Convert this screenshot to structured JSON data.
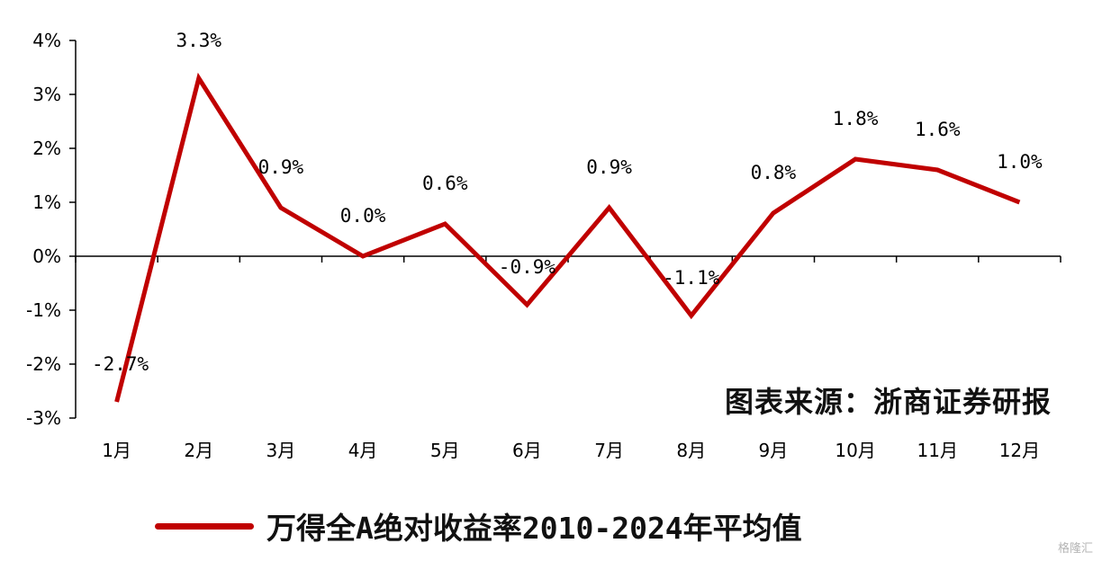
{
  "chart_data": {
    "type": "line",
    "categories": [
      "1月",
      "2月",
      "3月",
      "4月",
      "5月",
      "6月",
      "7月",
      "8月",
      "9月",
      "10月",
      "11月",
      "12月"
    ],
    "series": [
      {
        "name": "万得全A绝对收益率2010-2024年平均值",
        "values": [
          -2.7,
          3.3,
          0.9,
          0.0,
          0.6,
          -0.9,
          0.9,
          -1.1,
          0.8,
          1.8,
          1.6,
          1.0
        ],
        "labels": [
          "-2.7%",
          "3.3%",
          "0.9%",
          "0.0%",
          "0.6%",
          "-0.9%",
          "0.9%",
          "-1.1%",
          "0.8%",
          "1.8%",
          "1.6%",
          "1.0%"
        ],
        "color": "#C00000"
      }
    ],
    "y_ticks": [
      "-3%",
      "-2%",
      "-1%",
      "0%",
      "1%",
      "2%",
      "3%",
      "4%"
    ],
    "ylim": [
      -3,
      4
    ],
    "grid": false,
    "legend_position": "bottom"
  },
  "source_text": "图表来源：浙商证券研报",
  "watermark": "格隆汇"
}
